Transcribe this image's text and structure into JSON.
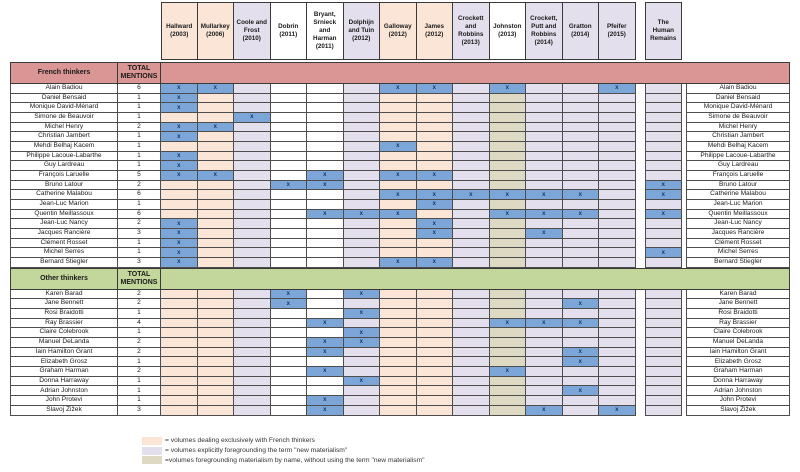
{
  "palette": {
    "french_volume": "#FBE5D6",
    "new_materialism": "#E4DFEC",
    "materialism_by_name": "#DDD9C3",
    "uncategorized": "#FFFFFF",
    "mark_fill": "#7CA6D8",
    "mark_text": "#17375E",
    "french_band": "#D99694",
    "other_band": "#C3D69B",
    "grid_line": "#4d4d4d"
  },
  "mark_glyph": "x",
  "chart_data": {
    "type": "table",
    "columns": [
      {
        "label": "Hallward (2003)",
        "header": "french",
        "body": "french"
      },
      {
        "label": "Mullarkey (2006)",
        "header": "french",
        "body": "french"
      },
      {
        "label": "Coole and Frost (2010)",
        "header": "newmat",
        "body": "newmat"
      },
      {
        "label": "Dobrin (2011)",
        "header": "none",
        "body": "none"
      },
      {
        "label": "Bryant, Srnieck and Harman (2011)",
        "header": "none",
        "body": "none"
      },
      {
        "label": "Dolphijn and Tuin (2012)",
        "header": "newmat",
        "body": "newmat"
      },
      {
        "label": "Galloway (2012)",
        "header": "french",
        "body": "french"
      },
      {
        "label": "James (2012)",
        "header": "french",
        "body": "french"
      },
      {
        "label": "Crockett and Robbins (2013)",
        "header": "newmat",
        "body": "newmat"
      },
      {
        "label": "Johnston (2013)",
        "header": "none",
        "body": "matname"
      },
      {
        "label": "Crockett, Putt and Robbins (2014)",
        "header": "newmat",
        "body": "newmat"
      },
      {
        "label": "Gratton (2014)",
        "header": "newmat",
        "body": "newmat"
      },
      {
        "label": "Pfeifer (2015)",
        "header": "newmat",
        "body": "newmat"
      },
      {
        "label": "The Human Remains",
        "header": "newmat",
        "body": "newmat",
        "separated": true
      }
    ],
    "sections": [
      {
        "title": "French thinkers",
        "total_header": "TOTAL MENTIONS",
        "band": "french_band",
        "rows": [
          {
            "name": "Alain Badiou",
            "total": "6",
            "marks": [
              1,
              1,
              0,
              0,
              0,
              0,
              1,
              1,
              0,
              1,
              0,
              0,
              1,
              0
            ]
          },
          {
            "name": "Daniel Bensaid",
            "total": "1",
            "marks": [
              1,
              0,
              0,
              0,
              0,
              0,
              0,
              0,
              0,
              0,
              0,
              0,
              0,
              0
            ]
          },
          {
            "name": "Monique David-Ménard",
            "total": "1",
            "marks": [
              1,
              0,
              0,
              0,
              0,
              0,
              0,
              0,
              0,
              0,
              0,
              0,
              0,
              0
            ]
          },
          {
            "name": "Simone de Beauvoir",
            "total": "1",
            "marks": [
              0,
              0,
              1,
              0,
              0,
              0,
              0,
              0,
              0,
              0,
              0,
              0,
              0,
              0
            ]
          },
          {
            "name": "Michel Henry",
            "total": "2",
            "marks": [
              1,
              1,
              0,
              0,
              0,
              0,
              0,
              0,
              0,
              0,
              0,
              0,
              0,
              0
            ]
          },
          {
            "name": "Christian Jambert",
            "total": "1",
            "marks": [
              1,
              0,
              0,
              0,
              0,
              0,
              0,
              0,
              0,
              0,
              0,
              0,
              0,
              0
            ]
          },
          {
            "name": "Mehdi Belhaj Kacem",
            "total": "1",
            "marks": [
              0,
              0,
              0,
              0,
              0,
              0,
              1,
              0,
              0,
              0,
              0,
              0,
              0,
              0
            ]
          },
          {
            "name": "Philippe Lacoue-Labarthe",
            "total": "1",
            "marks": [
              1,
              0,
              0,
              0,
              0,
              0,
              0,
              0,
              0,
              0,
              0,
              0,
              0,
              0
            ]
          },
          {
            "name": "Guy Lardreau",
            "total": "1",
            "marks": [
              1,
              0,
              0,
              0,
              0,
              0,
              0,
              0,
              0,
              0,
              0,
              0,
              0,
              0
            ]
          },
          {
            "name": "François Laruelle",
            "total": "5",
            "marks": [
              1,
              1,
              0,
              0,
              1,
              0,
              1,
              1,
              0,
              0,
              0,
              0,
              0,
              0
            ]
          },
          {
            "name": "Bruno Latour",
            "total": "2",
            "marks": [
              0,
              0,
              0,
              1,
              1,
              0,
              0,
              0,
              0,
              0,
              0,
              0,
              0,
              1
            ]
          },
          {
            "name": "Catherine Malabou",
            "total": "6",
            "marks": [
              0,
              0,
              0,
              0,
              0,
              0,
              1,
              1,
              1,
              1,
              1,
              1,
              0,
              1
            ]
          },
          {
            "name": "Jean-Luc Marion",
            "total": "1",
            "marks": [
              0,
              0,
              0,
              0,
              0,
              0,
              0,
              1,
              0,
              0,
              0,
              0,
              0,
              0
            ]
          },
          {
            "name": "Quentin Meillassoux",
            "total": "6",
            "marks": [
              0,
              0,
              0,
              0,
              1,
              1,
              1,
              0,
              0,
              1,
              1,
              1,
              0,
              1
            ]
          },
          {
            "name": "Jean-Luc Nancy",
            "total": "2",
            "marks": [
              1,
              0,
              0,
              0,
              0,
              0,
              0,
              1,
              0,
              0,
              0,
              0,
              0,
              0
            ]
          },
          {
            "name": "Jacques Rancière",
            "total": "3",
            "marks": [
              1,
              0,
              0,
              0,
              0,
              0,
              0,
              1,
              0,
              0,
              1,
              0,
              0,
              0
            ]
          },
          {
            "name": "Clément Rosset",
            "total": "1",
            "marks": [
              1,
              0,
              0,
              0,
              0,
              0,
              0,
              0,
              0,
              0,
              0,
              0,
              0,
              0
            ]
          },
          {
            "name": "Michel Serres",
            "total": "1",
            "marks": [
              1,
              0,
              0,
              0,
              0,
              0,
              0,
              0,
              0,
              0,
              0,
              0,
              0,
              1
            ]
          },
          {
            "name": "Bernard Stiegler",
            "total": "3",
            "marks": [
              1,
              0,
              0,
              0,
              0,
              0,
              1,
              1,
              0,
              0,
              0,
              0,
              0,
              0
            ]
          }
        ]
      },
      {
        "title": "Other thinkers",
        "total_header": "TOTAL MENTIONS",
        "band": "other_band",
        "rows": [
          {
            "name": "Karen Barad",
            "total": "2",
            "marks": [
              0,
              0,
              0,
              1,
              0,
              1,
              0,
              0,
              0,
              0,
              0,
              0,
              0,
              0
            ]
          },
          {
            "name": "Jane Bennett",
            "total": "2",
            "marks": [
              0,
              0,
              0,
              1,
              0,
              0,
              0,
              0,
              0,
              0,
              0,
              1,
              0,
              0
            ]
          },
          {
            "name": "Rosi Braidotti",
            "total": "1",
            "marks": [
              0,
              0,
              0,
              0,
              0,
              1,
              0,
              0,
              0,
              0,
              0,
              0,
              0,
              0
            ]
          },
          {
            "name": "Ray Brassier",
            "total": "4",
            "marks": [
              0,
              0,
              0,
              0,
              1,
              0,
              0,
              0,
              0,
              1,
              1,
              1,
              0,
              0
            ]
          },
          {
            "name": "Claire Colebrook",
            "total": "1",
            "marks": [
              0,
              0,
              0,
              0,
              0,
              1,
              0,
              0,
              0,
              0,
              0,
              0,
              0,
              0
            ]
          },
          {
            "name": "Manuel DeLanda",
            "total": "2",
            "marks": [
              0,
              0,
              0,
              0,
              1,
              1,
              0,
              0,
              0,
              0,
              0,
              0,
              0,
              0
            ]
          },
          {
            "name": "Iain Hamilton Grant",
            "total": "2",
            "marks": [
              0,
              0,
              0,
              0,
              1,
              0,
              0,
              0,
              0,
              0,
              0,
              1,
              0,
              0
            ]
          },
          {
            "name": "Elizabeth Grosz",
            "total": "1",
            "marks": [
              0,
              0,
              0,
              0,
              0,
              0,
              0,
              0,
              0,
              0,
              0,
              1,
              0,
              0
            ]
          },
          {
            "name": "Graham Harman",
            "total": "2",
            "marks": [
              0,
              0,
              0,
              0,
              1,
              0,
              0,
              0,
              0,
              1,
              0,
              0,
              0,
              0
            ]
          },
          {
            "name": "Donna Harraway",
            "total": "1",
            "marks": [
              0,
              0,
              0,
              0,
              0,
              1,
              0,
              0,
              0,
              0,
              0,
              0,
              0,
              0
            ]
          },
          {
            "name": "Adrian Johnston",
            "total": "1",
            "marks": [
              0,
              0,
              0,
              0,
              0,
              0,
              0,
              0,
              0,
              0,
              0,
              1,
              0,
              0
            ]
          },
          {
            "name": "John Protevi",
            "total": "1",
            "marks": [
              0,
              0,
              0,
              0,
              1,
              0,
              0,
              0,
              0,
              0,
              0,
              0,
              0,
              0
            ]
          },
          {
            "name": "Slavoj Žižek",
            "total": "3",
            "marks": [
              0,
              0,
              0,
              0,
              1,
              0,
              0,
              0,
              0,
              0,
              1,
              0,
              1,
              0
            ]
          }
        ]
      }
    ],
    "legend": [
      {
        "category": "french",
        "text": "= volumes dealing exclusively with French thinkers"
      },
      {
        "category": "newmat",
        "text": "= volumes explicitly foregrounding the term \"new materialism\""
      },
      {
        "category": "matname",
        "text": "=volumes foregrounding materialism by name, without using the term \"new materialism\""
      }
    ]
  }
}
